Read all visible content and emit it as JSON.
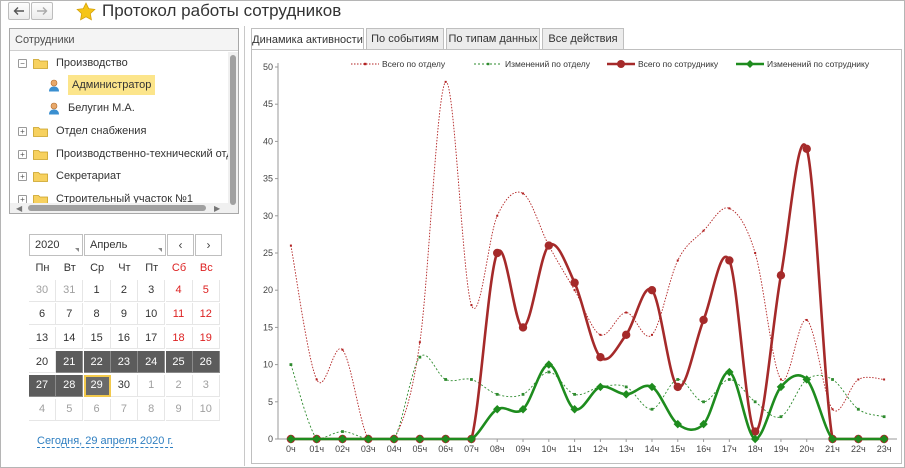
{
  "header": {
    "title": "Протокол работы сотрудников",
    "back_icon": "back-arrow-icon",
    "forward_icon": "forward-arrow-icon",
    "favorite_icon": "star-icon"
  },
  "employees": {
    "header": "Сотрудники",
    "tree": [
      {
        "label": "Производство",
        "toggle": "−",
        "type": "folder",
        "level": 0
      },
      {
        "label": "Администратор",
        "type": "user",
        "level": 1,
        "selected": true
      },
      {
        "label": "Белугин М.А.",
        "type": "user",
        "level": 1
      },
      {
        "label": "Отдел снабжения",
        "toggle": "+",
        "type": "folder",
        "level": 0
      },
      {
        "label": "Производственно-технический отдел",
        "toggle": "+",
        "type": "folder",
        "level": 0
      },
      {
        "label": "Секретариат",
        "toggle": "+",
        "type": "folder",
        "level": 0
      },
      {
        "label": "Строительный участок №1",
        "toggle": "+",
        "type": "folder",
        "level": 0
      }
    ]
  },
  "calendar": {
    "year": "2020",
    "month": "Апрель",
    "prev": "‹",
    "next": "›",
    "weekdays": [
      "Пн",
      "Вт",
      "Ср",
      "Чт",
      "Пт",
      "Сб",
      "Вс"
    ],
    "weeks": [
      [
        "30",
        "31",
        "1",
        "2",
        "3",
        "4",
        "5"
      ],
      [
        "6",
        "7",
        "8",
        "9",
        "10",
        "11",
        "12"
      ],
      [
        "13",
        "14",
        "15",
        "16",
        "17",
        "18",
        "19"
      ],
      [
        "20",
        "21",
        "22",
        "23",
        "24",
        "25",
        "26"
      ],
      [
        "27",
        "28",
        "29",
        "30",
        "1",
        "2",
        "3"
      ],
      [
        "4",
        "5",
        "6",
        "7",
        "8",
        "9",
        "10"
      ]
    ],
    "today_link": "Сегодня, 29 апреля 2020 г.",
    "colors": {
      "weekend": "#dd2222",
      "selection": "#5c5c5c",
      "today_outline": "#f2c94c"
    }
  },
  "tabs": [
    {
      "label": "Динамика активности",
      "active": true
    },
    {
      "label": "По событиям",
      "active": false
    },
    {
      "label": "По типам данных",
      "active": false
    },
    {
      "label": "Все действия",
      "active": false
    }
  ],
  "chart_data": {
    "type": "line",
    "ylim": [
      0,
      50
    ],
    "yticks": [
      0,
      5,
      10,
      15,
      20,
      25,
      30,
      35,
      40,
      45,
      50
    ],
    "x": [
      "0ч",
      "01ч",
      "02ч",
      "03ч",
      "04ч",
      "05ч",
      "06ч",
      "07ч",
      "08ч",
      "09ч",
      "10ч",
      "11ч",
      "12ч",
      "13ч",
      "14ч",
      "15ч",
      "16ч",
      "17ч",
      "18ч",
      "19ч",
      "20ч",
      "21ч",
      "22ч",
      "23ч"
    ],
    "series": [
      {
        "name": "Всего по отделу",
        "color": "#b22222",
        "style": "dotted-thin",
        "values": [
          26,
          8,
          12,
          0,
          0,
          13,
          48,
          18,
          30,
          33,
          26,
          20,
          14,
          17,
          14,
          24,
          28,
          31,
          25,
          8,
          16,
          4,
          8,
          8
        ]
      },
      {
        "name": "Изменений по отделу",
        "color": "#2e8b2e",
        "style": "dashed-thin",
        "values": [
          10,
          0,
          1,
          0,
          0,
          11,
          8,
          8,
          6,
          6,
          9,
          6,
          7,
          7,
          4,
          8,
          5,
          8,
          5,
          3,
          8,
          8,
          4,
          3
        ]
      },
      {
        "name": "Всего по сотруднику",
        "color": "#a52a2a",
        "style": "thick",
        "values": [
          0,
          0,
          0,
          0,
          0,
          0,
          0,
          0,
          25,
          15,
          26,
          21,
          11,
          14,
          20,
          7,
          16,
          24,
          1,
          22,
          39,
          0,
          0,
          0
        ]
      },
      {
        "name": "Изменений по сотруднику",
        "color": "#1e8c1e",
        "style": "thick",
        "values": [
          0,
          0,
          0,
          0,
          0,
          0,
          0,
          0,
          4,
          4,
          10,
          4,
          7,
          6,
          7,
          2,
          2,
          9,
          0,
          7,
          8,
          0,
          0,
          0
        ]
      }
    ]
  }
}
